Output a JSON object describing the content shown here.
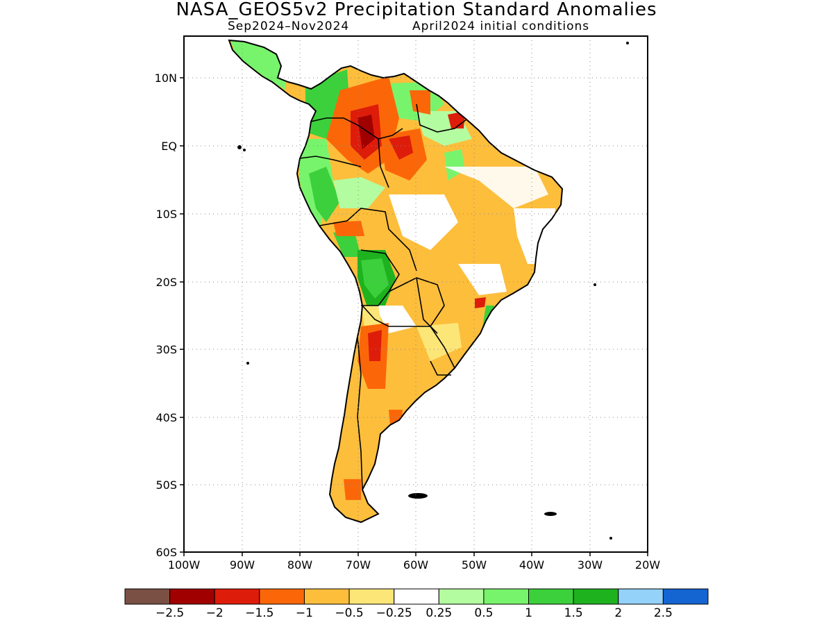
{
  "title": "NASA_GEOS5v2 Precipitation Standard Anomalies",
  "subtitle_period": "Sep2024–Nov2024",
  "subtitle_init": "April2024 initial conditions",
  "lat_ticks": [
    "10N",
    "EQ",
    "10S",
    "20S",
    "30S",
    "40S",
    "50S",
    "60S"
  ],
  "lon_ticks": [
    "100W",
    "90W",
    "80W",
    "70W",
    "60W",
    "50W",
    "40W",
    "30W",
    "20W"
  ],
  "colorbar": {
    "colors": [
      "#7a5044",
      "#a00000",
      "#dd1c0a",
      "#fb6708",
      "#fdbe3c",
      "#fde678",
      "#ffffff",
      "#b4fca0",
      "#78f46c",
      "#3cd03c",
      "#1eb21e",
      "#94d2fa",
      "#1464d2"
    ],
    "labels": [
      "−2.5",
      "−2",
      "−1.5",
      "−1",
      "−0.5",
      "−0.25",
      "0.25",
      "0.5",
      "1",
      "1.5",
      "2",
      "2.5"
    ]
  }
}
